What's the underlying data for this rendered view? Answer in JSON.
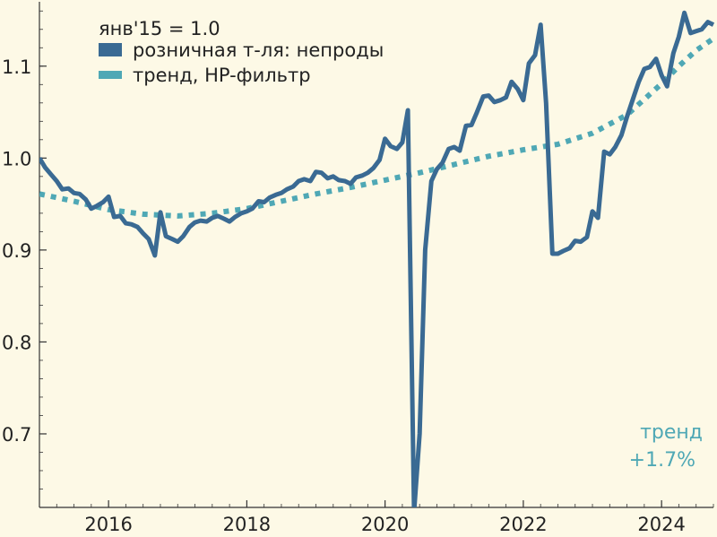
{
  "colors": {
    "background": "#fdf9e6",
    "retail": "#3a6a93",
    "trend": "#4fa8b5",
    "axis": "#333333"
  },
  "chart_data": {
    "type": "line",
    "title": "",
    "xlabel": "",
    "ylabel": "",
    "base_label": "янв'15 = 1.0",
    "xlim": [
      2015.0,
      2024.75
    ],
    "ylim": [
      0.62,
      1.17
    ],
    "x_ticks": [
      2016,
      2018,
      2020,
      2022,
      2024
    ],
    "x_tick_labels": [
      "2016",
      "2018",
      "2020",
      "2022",
      "2024"
    ],
    "y_ticks": [
      0.7,
      0.8,
      0.9,
      1.0,
      1.1
    ],
    "y_tick_labels": [
      "0.7",
      "0.8",
      "0.9",
      "1.0",
      "1.1"
    ],
    "legend_position": "top-left",
    "annotation": {
      "line1": "тренд",
      "line2": "+1.7%"
    },
    "series": [
      {
        "name": "розничная т-ля: непроды",
        "style": "solid",
        "color": "#3a6a93",
        "points": [
          [
            2015.0,
            1.0
          ],
          [
            2015.08,
            0.99
          ],
          [
            2015.17,
            0.982
          ],
          [
            2015.25,
            0.975
          ],
          [
            2015.33,
            0.966
          ],
          [
            2015.42,
            0.967
          ],
          [
            2015.5,
            0.962
          ],
          [
            2015.58,
            0.961
          ],
          [
            2015.67,
            0.955
          ],
          [
            2015.75,
            0.945
          ],
          [
            2015.83,
            0.948
          ],
          [
            2015.92,
            0.952
          ],
          [
            2016.0,
            0.958
          ],
          [
            2016.08,
            0.936
          ],
          [
            2016.17,
            0.937
          ],
          [
            2016.25,
            0.929
          ],
          [
            2016.33,
            0.928
          ],
          [
            2016.42,
            0.925
          ],
          [
            2016.5,
            0.918
          ],
          [
            2016.58,
            0.912
          ],
          [
            2016.67,
            0.894
          ],
          [
            2016.75,
            0.941
          ],
          [
            2016.83,
            0.915
          ],
          [
            2016.92,
            0.912
          ],
          [
            2017.0,
            0.909
          ],
          [
            2017.08,
            0.915
          ],
          [
            2017.17,
            0.925
          ],
          [
            2017.25,
            0.93
          ],
          [
            2017.33,
            0.932
          ],
          [
            2017.42,
            0.931
          ],
          [
            2017.5,
            0.935
          ],
          [
            2017.58,
            0.937
          ],
          [
            2017.67,
            0.934
          ],
          [
            2017.75,
            0.931
          ],
          [
            2017.83,
            0.936
          ],
          [
            2017.92,
            0.94
          ],
          [
            2018.0,
            0.942
          ],
          [
            2018.08,
            0.945
          ],
          [
            2018.17,
            0.953
          ],
          [
            2018.25,
            0.952
          ],
          [
            2018.33,
            0.957
          ],
          [
            2018.42,
            0.96
          ],
          [
            2018.5,
            0.962
          ],
          [
            2018.58,
            0.966
          ],
          [
            2018.67,
            0.969
          ],
          [
            2018.75,
            0.975
          ],
          [
            2018.83,
            0.977
          ],
          [
            2018.92,
            0.975
          ],
          [
            2019.0,
            0.985
          ],
          [
            2019.08,
            0.984
          ],
          [
            2019.17,
            0.978
          ],
          [
            2019.25,
            0.98
          ],
          [
            2019.33,
            0.976
          ],
          [
            2019.42,
            0.975
          ],
          [
            2019.5,
            0.972
          ],
          [
            2019.58,
            0.979
          ],
          [
            2019.67,
            0.981
          ],
          [
            2019.75,
            0.984
          ],
          [
            2019.83,
            0.989
          ],
          [
            2019.92,
            0.998
          ],
          [
            2020.0,
            1.021
          ],
          [
            2020.08,
            1.013
          ],
          [
            2020.17,
            1.01
          ],
          [
            2020.25,
            1.017
          ],
          [
            2020.33,
            1.052
          ],
          [
            2020.42,
            0.615
          ],
          [
            2020.5,
            0.7
          ],
          [
            2020.58,
            0.9
          ],
          [
            2020.67,
            0.975
          ],
          [
            2020.75,
            0.988
          ],
          [
            2020.83,
            0.995
          ],
          [
            2020.92,
            1.01
          ],
          [
            2021.0,
            1.012
          ],
          [
            2021.08,
            1.008
          ],
          [
            2021.17,
            1.035
          ],
          [
            2021.25,
            1.036
          ],
          [
            2021.33,
            1.05
          ],
          [
            2021.42,
            1.067
          ],
          [
            2021.5,
            1.068
          ],
          [
            2021.58,
            1.061
          ],
          [
            2021.67,
            1.063
          ],
          [
            2021.75,
            1.066
          ],
          [
            2021.83,
            1.083
          ],
          [
            2021.92,
            1.075
          ],
          [
            2022.0,
            1.063
          ],
          [
            2022.08,
            1.103
          ],
          [
            2022.17,
            1.112
          ],
          [
            2022.25,
            1.145
          ],
          [
            2022.33,
            1.06
          ],
          [
            2022.42,
            0.896
          ],
          [
            2022.5,
            0.896
          ],
          [
            2022.58,
            0.899
          ],
          [
            2022.67,
            0.902
          ],
          [
            2022.75,
            0.91
          ],
          [
            2022.83,
            0.909
          ],
          [
            2022.92,
            0.914
          ],
          [
            2023.0,
            0.942
          ],
          [
            2023.08,
            0.935
          ],
          [
            2023.17,
            1.007
          ],
          [
            2023.25,
            1.004
          ],
          [
            2023.33,
            1.012
          ],
          [
            2023.42,
            1.025
          ],
          [
            2023.5,
            1.045
          ],
          [
            2023.58,
            1.063
          ],
          [
            2023.67,
            1.083
          ],
          [
            2023.75,
            1.097
          ],
          [
            2023.83,
            1.099
          ],
          [
            2023.92,
            1.108
          ],
          [
            2024.0,
            1.09
          ],
          [
            2024.08,
            1.078
          ],
          [
            2024.17,
            1.114
          ],
          [
            2024.25,
            1.132
          ],
          [
            2024.33,
            1.158
          ],
          [
            2024.42,
            1.136
          ],
          [
            2024.5,
            1.138
          ],
          [
            2024.58,
            1.14
          ],
          [
            2024.67,
            1.148
          ],
          [
            2024.75,
            1.145
          ]
        ]
      },
      {
        "name": "тренд, HP-фильтр",
        "style": "dashed",
        "color": "#4fa8b5",
        "points": [
          [
            2015.0,
            0.961
          ],
          [
            2015.5,
            0.953
          ],
          [
            2016.0,
            0.944
          ],
          [
            2016.5,
            0.939
          ],
          [
            2017.0,
            0.937
          ],
          [
            2017.5,
            0.94
          ],
          [
            2018.0,
            0.945
          ],
          [
            2018.5,
            0.953
          ],
          [
            2019.0,
            0.961
          ],
          [
            2019.5,
            0.968
          ],
          [
            2020.0,
            0.976
          ],
          [
            2020.5,
            0.984
          ],
          [
            2021.0,
            0.993
          ],
          [
            2021.5,
            1.002
          ],
          [
            2022.0,
            1.009
          ],
          [
            2022.5,
            1.015
          ],
          [
            2023.0,
            1.027
          ],
          [
            2023.5,
            1.047
          ],
          [
            2024.0,
            1.081
          ],
          [
            2024.25,
            1.1
          ],
          [
            2024.5,
            1.117
          ],
          [
            2024.75,
            1.13
          ]
        ]
      }
    ]
  }
}
